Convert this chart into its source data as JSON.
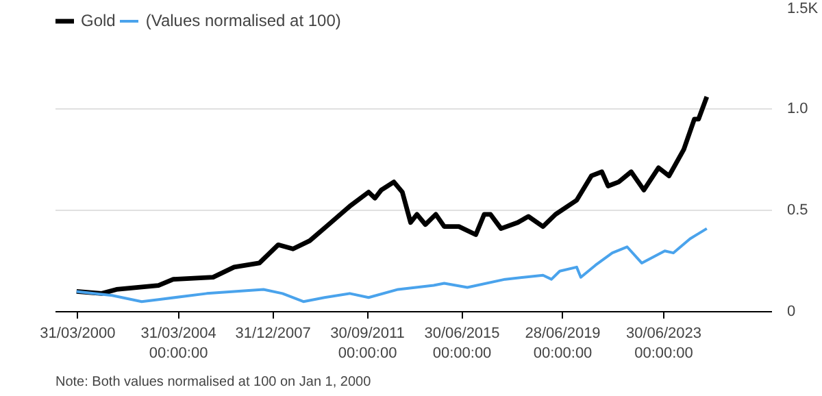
{
  "chart_data": {
    "type": "line",
    "annotations": [
      "Note: Both values normalised at 100 on Jan 1, 2000"
    ],
    "series": [
      {
        "name": "Gold",
        "color": "#000000",
        "x": [
          "2000-03",
          "2001-03",
          "2001-10",
          "2003-06",
          "2004-01",
          "2005-08",
          "2006-06",
          "2007-06",
          "2008-03",
          "2008-10",
          "2009-06",
          "2010-03",
          "2011-01",
          "2011-10",
          "2012-01",
          "2012-04",
          "2012-10",
          "2013-02",
          "2013-06",
          "2013-09",
          "2014-01",
          "2014-06",
          "2014-10",
          "2015-05",
          "2016-01",
          "2016-05",
          "2016-08",
          "2017-01",
          "2017-09",
          "2018-02",
          "2018-09",
          "2019-03",
          "2020-01",
          "2020-08",
          "2021-01",
          "2021-04",
          "2021-09",
          "2022-03",
          "2022-09",
          "2023-04",
          "2023-09",
          "2024-04",
          "2024-09",
          "2024-11",
          "2025-03"
        ],
        "values": [
          0.1,
          0.09,
          0.11,
          0.13,
          0.16,
          0.17,
          0.22,
          0.24,
          0.33,
          0.31,
          0.35,
          0.43,
          0.52,
          0.59,
          0.56,
          0.6,
          0.64,
          0.59,
          0.44,
          0.48,
          0.43,
          0.48,
          0.42,
          0.42,
          0.38,
          0.48,
          0.48,
          0.41,
          0.44,
          0.47,
          0.42,
          0.48,
          0.55,
          0.67,
          0.69,
          0.62,
          0.64,
          0.69,
          0.6,
          0.71,
          0.67,
          0.8,
          0.95,
          0.95,
          1.06
        ]
      },
      {
        "name": "(Values normalised at 100)",
        "color": "#4aa3ec",
        "x": [
          "2000-03",
          "2001-08",
          "2002-10",
          "2003-06",
          "2005-05",
          "2007-08",
          "2008-05",
          "2009-03",
          "2010-01",
          "2011-01",
          "2011-10",
          "2012-12",
          "2014-05",
          "2014-10",
          "2015-09",
          "2017-03",
          "2018-09",
          "2019-01",
          "2019-05",
          "2020-01",
          "2020-03",
          "2020-10",
          "2021-06",
          "2022-01",
          "2022-08",
          "2023-07",
          "2023-11",
          "2024-07",
          "2025-03"
        ],
        "values": [
          0.1,
          0.08,
          0.05,
          0.06,
          0.09,
          0.11,
          0.09,
          0.05,
          0.07,
          0.09,
          0.07,
          0.11,
          0.13,
          0.14,
          0.12,
          0.16,
          0.18,
          0.16,
          0.2,
          0.22,
          0.17,
          0.23,
          0.29,
          0.32,
          0.24,
          0.3,
          0.29,
          0.36,
          0.41
        ]
      }
    ],
    "xlim": [
      "1999-05",
      "2027-10"
    ],
    "xticks": [
      {
        "value": "2000-03-31",
        "label": "31/03/2000"
      },
      {
        "value": "2004-03-31",
        "label": "31/03/2004\n00:00:00"
      },
      {
        "value": "2007-12-31",
        "label": "31/12/2007"
      },
      {
        "value": "2011-09-30",
        "label": "30/09/2011\n00:00:00"
      },
      {
        "value": "2015-06-30",
        "label": "30/06/2015\n00:00:00"
      },
      {
        "value": "2019-06-28",
        "label": "28/06/2019\n00:00:00"
      },
      {
        "value": "2023-06-30",
        "label": "30/06/2023\n00:00:00"
      }
    ],
    "ylim": [
      0,
      1.5
    ],
    "yticks": [
      0,
      0.5,
      {
        "value": 1.0,
        "label": "1.0"
      },
      {
        "value": 1.5,
        "label": "1.5K"
      }
    ],
    "grid": "y",
    "legend": "top left",
    "line_style": "solid",
    "marker": "none"
  }
}
